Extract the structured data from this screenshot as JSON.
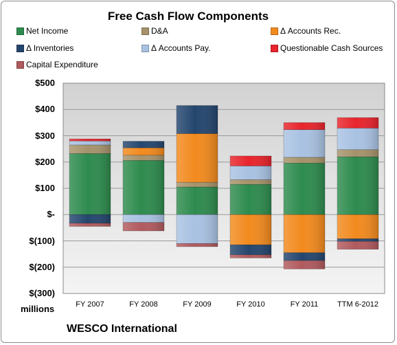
{
  "chart_data": {
    "type": "bar",
    "stacked": true,
    "title": "Free Cash Flow Components",
    "categories": [
      "FY 2007",
      "FY 2008",
      "FY 2009",
      "FY 2010",
      "FY 2011",
      "TTM 6-2012"
    ],
    "units": "millions",
    "ylim": [
      -300,
      500
    ],
    "yticks": [
      500,
      400,
      300,
      200,
      100,
      0,
      -100,
      -200,
      -300
    ],
    "ytick_labels": [
      "$500",
      "$400",
      "$300",
      "$200",
      "$100",
      "$-",
      "$(100)",
      "$(200)",
      "$(300)"
    ],
    "grid": true,
    "legend_position": "top",
    "footer": "WESCO International",
    "series": [
      {
        "name": "Net Income",
        "color": "#2e8b4e",
        "values": [
          232,
          206,
          105,
          115,
          196,
          220
        ]
      },
      {
        "name": "D&A",
        "color": "#a6936b",
        "values": [
          33,
          20,
          18,
          18,
          22,
          27
        ]
      },
      {
        "name": "Δ Accounts Rec.",
        "color": "#f28a1e",
        "values": [
          0,
          28,
          185,
          -115,
          -145,
          -92
        ]
      },
      {
        "name": "Δ Inventories",
        "color": "#24466e",
        "values": [
          -33,
          25,
          107,
          -38,
          -30,
          -10
        ]
      },
      {
        "name": "Δ Accounts Pay.",
        "color": "#a9c2e2",
        "values": [
          15,
          -30,
          -110,
          52,
          105,
          82
        ]
      },
      {
        "name": "Questionable Cash Sources",
        "color": "#e8242c",
        "values": [
          8,
          0,
          0,
          38,
          27,
          40
        ]
      },
      {
        "name": "Capital Expenditure",
        "color": "#b05a5e",
        "values": [
          -12,
          -32,
          -12,
          -12,
          -32,
          -30
        ]
      }
    ]
  }
}
